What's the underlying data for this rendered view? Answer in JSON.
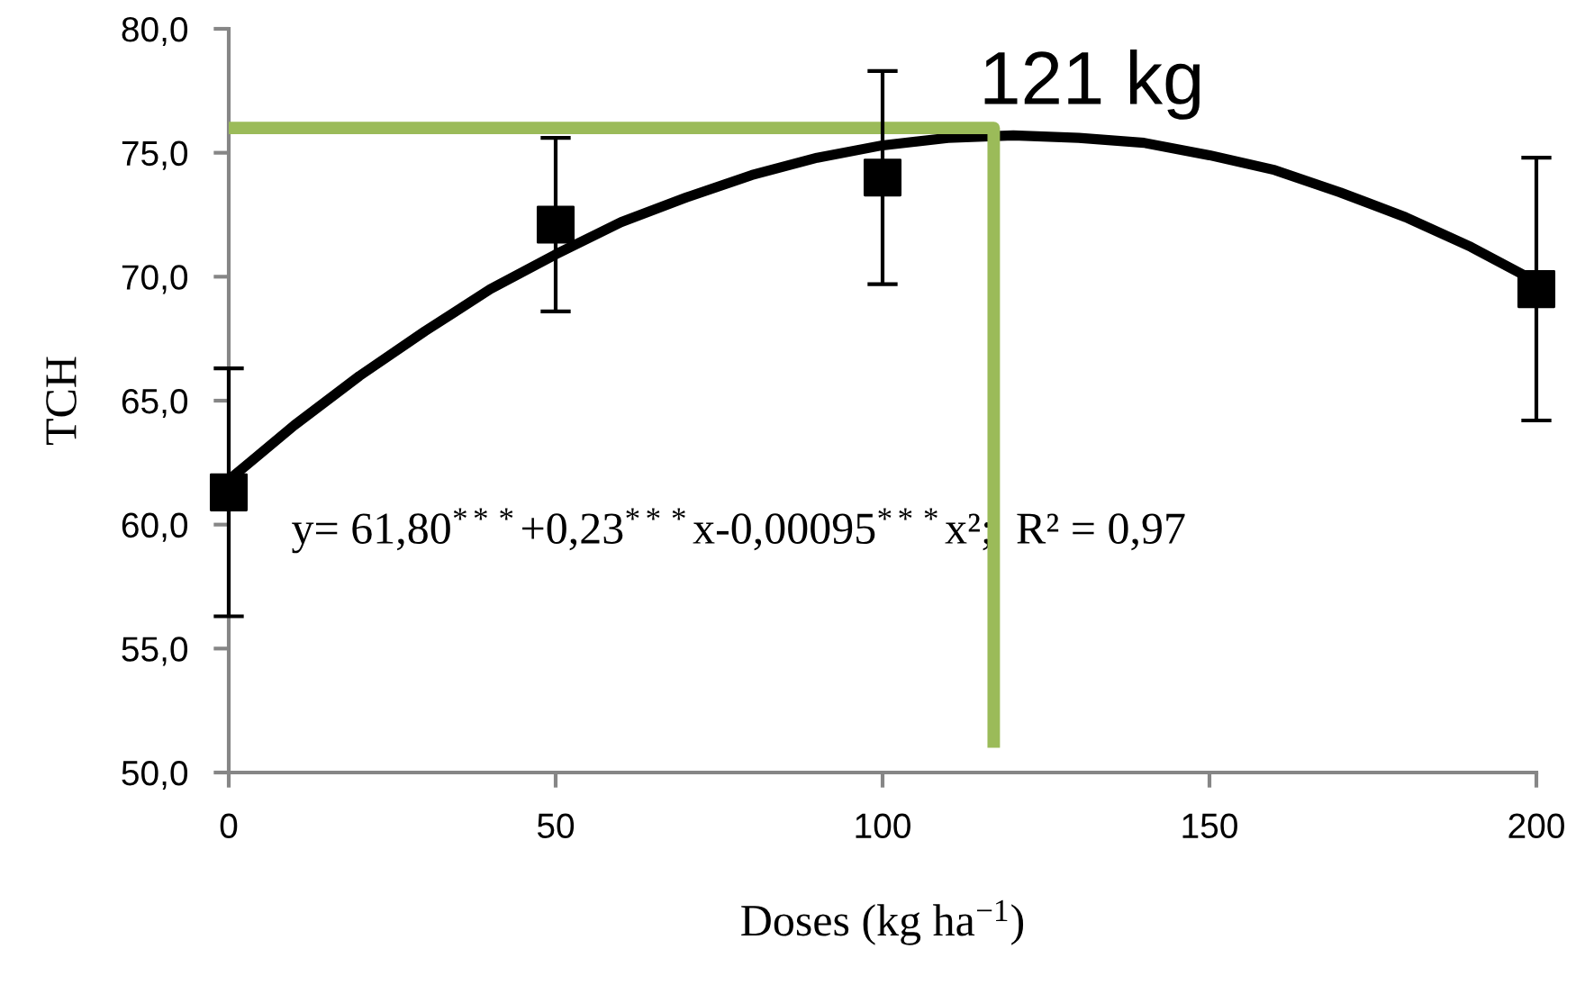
{
  "chart_data": {
    "type": "scatter",
    "xlabel": "Doses (kg ha$^{−1}$)",
    "ylabel": "TCH",
    "xlim": [
      0,
      200
    ],
    "xticks": [
      0,
      50,
      100,
      150,
      200
    ],
    "ylim": [
      50,
      80
    ],
    "yticks": [
      {
        "value": 50,
        "label": "50,0"
      },
      {
        "value": 55,
        "label": "55,0"
      },
      {
        "value": 60,
        "label": "60,0"
      },
      {
        "value": 65,
        "label": "65,0"
      },
      {
        "value": 70,
        "label": "70,0"
      },
      {
        "value": 75,
        "label": "75,0"
      },
      {
        "value": 80,
        "label": "80,0"
      }
    ],
    "grid": false,
    "legend": false,
    "series": [
      {
        "type": "line",
        "color": "#000000",
        "marker": "none",
        "x": [
          0,
          10,
          20,
          30,
          40,
          50,
          60,
          70,
          80,
          90,
          100,
          110,
          120,
          130,
          140,
          150,
          160,
          170,
          180,
          190,
          200
        ],
        "values": [
          61.8,
          64.0,
          66.0,
          67.8,
          69.5,
          70.9,
          72.2,
          73.2,
          74.1,
          74.8,
          75.3,
          75.6,
          75.7,
          75.6,
          75.4,
          74.9,
          74.3,
          73.4,
          72.4,
          71.2,
          69.8
        ]
      },
      {
        "type": "line",
        "color": "#9bbb59",
        "marker": "none",
        "x": [
          0,
          117,
          117
        ],
        "values": [
          76.0,
          76.0,
          51.0
        ]
      },
      {
        "color": "#000000",
        "marker": "square",
        "x": [
          0,
          50,
          100,
          200
        ],
        "values": [
          61.3,
          72.1,
          74.0,
          69.5
        ],
        "errors": [
          5.0,
          3.5,
          4.3,
          5.3
        ]
      }
    ],
    "annotations": [
      "121 kg",
      "y= 61,80$^{***}$+0,23$^{***}$x-0,00095$^{***}$x²;  R² = 0,97"
    ]
  }
}
